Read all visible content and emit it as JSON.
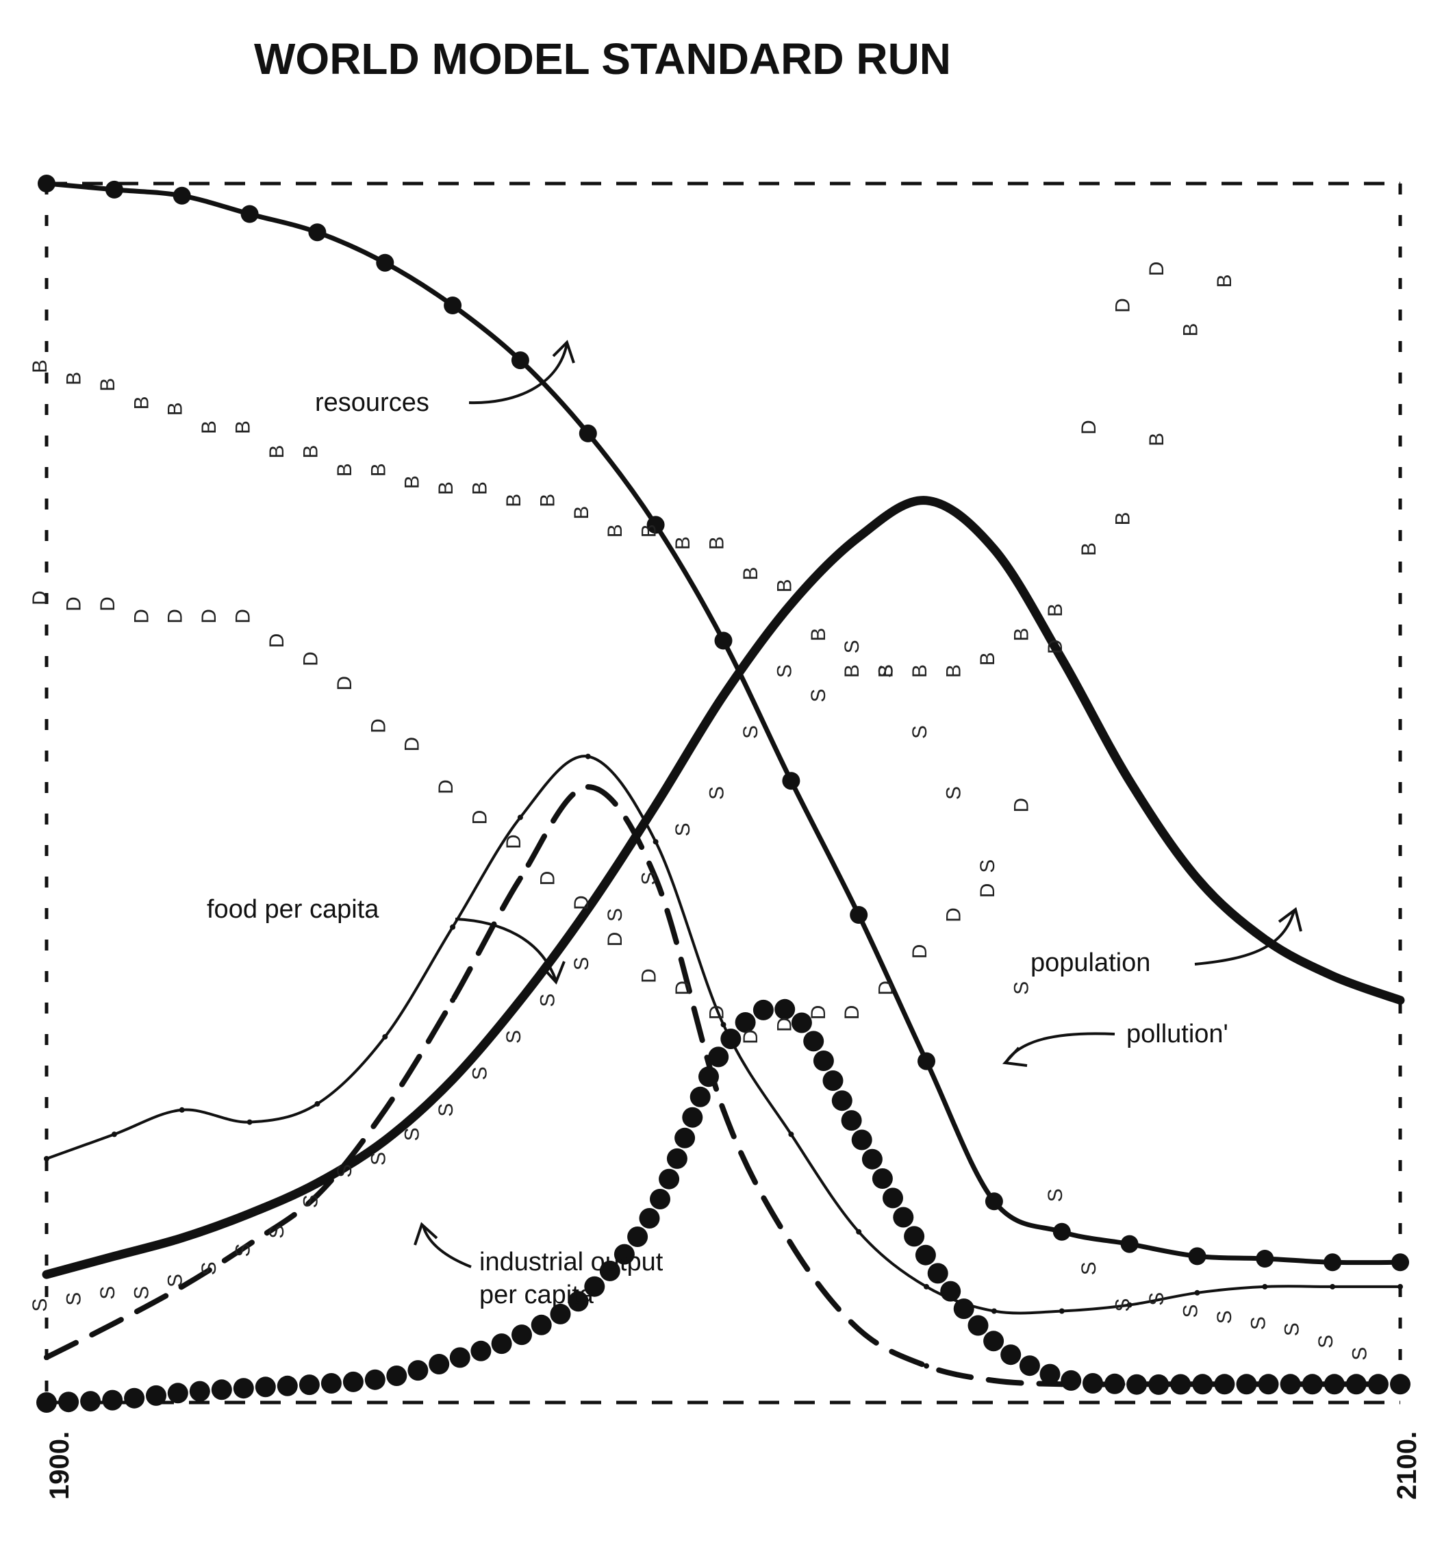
{
  "chart_data": {
    "type": "line",
    "title": "WORLD MODEL STANDARD RUN",
    "xlabel": "",
    "ylabel": "",
    "x_ticks": [
      "1900.",
      "2100."
    ],
    "xlim": [
      1900,
      2100
    ],
    "ylim": [
      0,
      1
    ],
    "grid": false,
    "legend": "none",
    "annotations": [
      "resources",
      "food per capita",
      "population",
      "pollution'",
      "industrial output per capita"
    ],
    "series": [
      {
        "name": "resources",
        "style": "solid-with-dots",
        "x": [
          1900,
          1910,
          1920,
          1930,
          1940,
          1950,
          1960,
          1970,
          1980,
          1990,
          2000,
          2010,
          2020,
          2030,
          2040,
          2050,
          2060,
          2070,
          2080,
          2090,
          2100
        ],
        "y": [
          1.0,
          0.995,
          0.99,
          0.975,
          0.96,
          0.935,
          0.9,
          0.855,
          0.795,
          0.72,
          0.625,
          0.51,
          0.4,
          0.28,
          0.165,
          0.14,
          0.13,
          0.12,
          0.118,
          0.115,
          0.115
        ]
      },
      {
        "name": "population",
        "style": "thick-solid",
        "x": [
          1900,
          1910,
          1920,
          1930,
          1940,
          1950,
          1960,
          1970,
          1980,
          1990,
          2000,
          2010,
          2020,
          2030,
          2040,
          2050,
          2060,
          2070,
          2080,
          2090,
          2100
        ],
        "y": [
          0.105,
          0.12,
          0.135,
          0.155,
          0.18,
          0.215,
          0.265,
          0.33,
          0.405,
          0.49,
          0.58,
          0.655,
          0.71,
          0.74,
          0.7,
          0.61,
          0.51,
          0.43,
          0.38,
          0.35,
          0.33
        ]
      },
      {
        "name": "food per capita",
        "style": "thin-solid",
        "x": [
          1900,
          1910,
          1920,
          1930,
          1940,
          1950,
          1960,
          1970,
          1980,
          1990,
          2000,
          2010,
          2020,
          2030,
          2040,
          2050,
          2060,
          2070,
          2080,
          2090,
          2100
        ],
        "y": [
          0.2,
          0.22,
          0.24,
          0.23,
          0.245,
          0.3,
          0.39,
          0.48,
          0.53,
          0.46,
          0.31,
          0.22,
          0.14,
          0.095,
          0.075,
          0.075,
          0.08,
          0.09,
          0.095,
          0.095,
          0.095
        ]
      },
      {
        "name": "industrial output per capita",
        "style": "dashed",
        "x": [
          1900,
          1910,
          1920,
          1930,
          1940,
          1950,
          1960,
          1970,
          1980,
          1990,
          2000,
          2010,
          2020,
          2030,
          2040,
          2050,
          2060,
          2070,
          2080,
          2090,
          2100
        ],
        "y": [
          0.037,
          0.065,
          0.095,
          0.13,
          0.17,
          0.24,
          0.33,
          0.43,
          0.505,
          0.43,
          0.24,
          0.13,
          0.06,
          0.03,
          0.018,
          0.015,
          0.015,
          0.015,
          0.015,
          0.015,
          0.015
        ]
      },
      {
        "name": "pollution'",
        "style": "dotted-large",
        "x": [
          1900,
          1910,
          1920,
          1930,
          1940,
          1950,
          1960,
          1970,
          1980,
          1990,
          2000,
          2010,
          2020,
          2030,
          2040,
          2050,
          2060,
          2070,
          2080,
          2090,
          2100
        ],
        "y": [
          0.0,
          0.002,
          0.008,
          0.012,
          0.015,
          0.02,
          0.035,
          0.055,
          0.09,
          0.16,
          0.29,
          0.32,
          0.22,
          0.12,
          0.05,
          0.02,
          0.015,
          0.015,
          0.015,
          0.015,
          0.015
        ]
      },
      {
        "name": "B",
        "style": "letter-B",
        "x": [
          1900,
          1905,
          1910,
          1915,
          1920,
          1925,
          1930,
          1935,
          1940,
          1945,
          1950,
          1955,
          1960,
          1965,
          1970,
          1975,
          1980,
          1985,
          1990,
          1995,
          2000,
          2005,
          2010,
          2015,
          2020,
          2025,
          2030,
          2035,
          2040,
          2045,
          2050,
          2055,
          2060,
          2065,
          2070,
          2075
        ],
        "y": [
          0.85,
          0.84,
          0.835,
          0.82,
          0.815,
          0.8,
          0.8,
          0.78,
          0.78,
          0.765,
          0.765,
          0.755,
          0.75,
          0.75,
          0.74,
          0.74,
          0.73,
          0.715,
          0.715,
          0.705,
          0.705,
          0.68,
          0.67,
          0.63,
          0.6,
          0.6,
          0.6,
          0.6,
          0.61,
          0.63,
          0.65,
          0.7,
          0.725,
          0.79,
          0.88,
          0.92
        ]
      },
      {
        "name": "D",
        "style": "letter-D",
        "x": [
          1900,
          1905,
          1910,
          1915,
          1920,
          1925,
          1930,
          1935,
          1940,
          1945,
          1950,
          1955,
          1960,
          1965,
          1970,
          1975,
          1980,
          1985,
          1990,
          1995,
          2000,
          2005,
          2010,
          2015,
          2020,
          2025,
          2030,
          2035,
          2040,
          2045,
          2050,
          2055,
          2060,
          2065
        ],
        "y": [
          0.66,
          0.655,
          0.655,
          0.645,
          0.645,
          0.645,
          0.645,
          0.625,
          0.61,
          0.59,
          0.555,
          0.54,
          0.505,
          0.48,
          0.46,
          0.43,
          0.41,
          0.38,
          0.35,
          0.34,
          0.32,
          0.3,
          0.31,
          0.32,
          0.32,
          0.34,
          0.37,
          0.4,
          0.42,
          0.49,
          0.62,
          0.8,
          0.9,
          0.93
        ]
      },
      {
        "name": "S",
        "style": "letter-S",
        "x": [
          1900,
          1905,
          1910,
          1915,
          1920,
          1925,
          1930,
          1935,
          1940,
          1945,
          1950,
          1955,
          1960,
          1965,
          1970,
          1975,
          1980,
          1985,
          1990,
          1995,
          2000,
          2005,
          2010,
          2015,
          2020,
          2025,
          2030,
          2035,
          2040,
          2045,
          2050,
          2055,
          2060,
          2065,
          2070,
          2075,
          2080,
          2085,
          2090,
          2095
        ],
        "y": [
          0.08,
          0.085,
          0.09,
          0.09,
          0.1,
          0.11,
          0.125,
          0.14,
          0.165,
          0.19,
          0.2,
          0.22,
          0.24,
          0.27,
          0.3,
          0.33,
          0.36,
          0.4,
          0.43,
          0.47,
          0.5,
          0.55,
          0.6,
          0.58,
          0.62,
          0.6,
          0.55,
          0.5,
          0.44,
          0.34,
          0.17,
          0.11,
          0.08,
          0.085,
          0.075,
          0.07,
          0.065,
          0.06,
          0.05,
          0.04
        ]
      }
    ]
  }
}
